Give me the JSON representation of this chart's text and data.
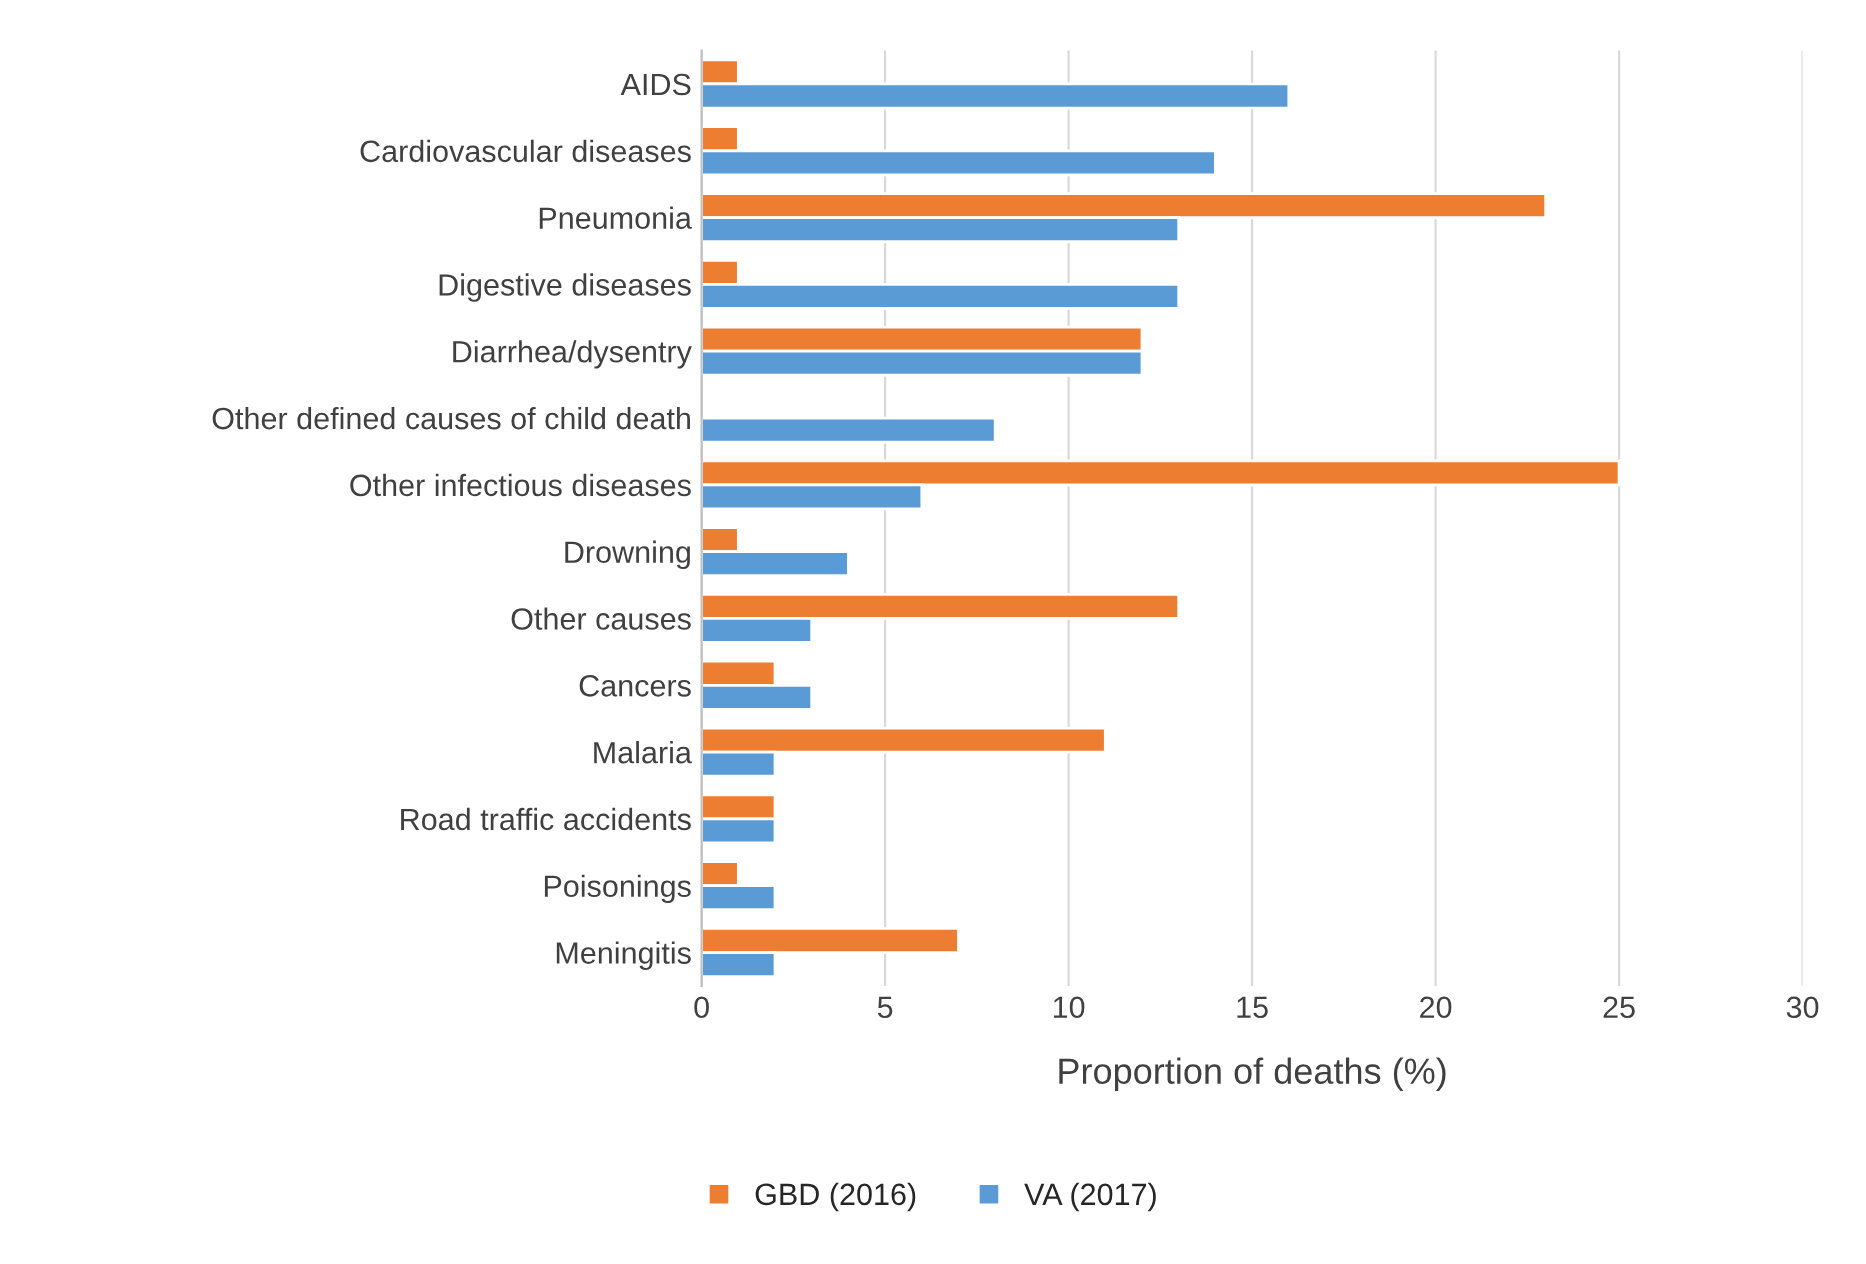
{
  "chart_data": {
    "type": "bar",
    "orientation": "horizontal",
    "xlabel": "Proportion of deaths (%)",
    "categories": [
      "AIDS",
      "Cardiovascular diseases",
      "Pneumonia",
      "Digestive diseases",
      "Diarrhea/dysentry",
      "Other defined causes of child death",
      "Other infectious diseases",
      "Drowning",
      "Other causes",
      "Cancers",
      "Malaria",
      "Road traffic accidents",
      "Poisonings",
      "Meningitis"
    ],
    "series": [
      {
        "name": "GBD (2016)",
        "color": "#ed7d31",
        "values": [
          1,
          1,
          23,
          1,
          12,
          null,
          25,
          1,
          13,
          2,
          11,
          2,
          1,
          7
        ]
      },
      {
        "name": "VA (2017)",
        "color": "#5b9bd5",
        "values": [
          16,
          14,
          13,
          13,
          12,
          8,
          6,
          4,
          3,
          3,
          2,
          2,
          2,
          2
        ]
      }
    ],
    "xlim": [
      0,
      30
    ],
    "xticks": [
      0,
      5,
      10,
      15,
      20,
      25,
      30
    ],
    "grid": "x",
    "legend": "bottom"
  }
}
